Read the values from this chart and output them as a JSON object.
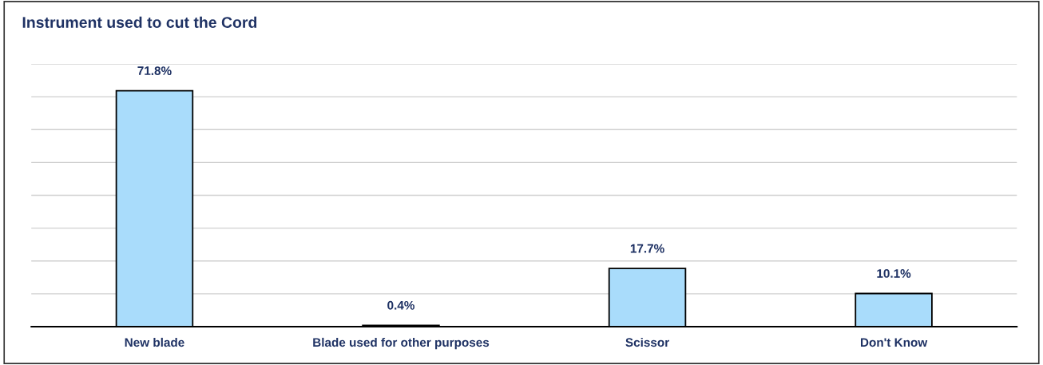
{
  "chart_data": {
    "type": "bar",
    "title": "Instrument used to cut the Cord",
    "categories": [
      "New blade",
      "Blade used for other purposes",
      "Scissor",
      "Don't Know"
    ],
    "values": [
      71.8,
      0.4,
      17.7,
      10.1
    ],
    "value_labels": [
      "71.8%",
      "0.4%",
      "17.7%",
      "10.1%"
    ],
    "color": "#a9dcfb",
    "ylim": [
      0,
      80
    ],
    "yticks": [
      {
        "value": 0,
        "label": null
      },
      {
        "value": 10,
        "label": null
      },
      {
        "value": 20,
        "label": null
      },
      {
        "value": 30,
        "label": null
      },
      {
        "value": 40,
        "label": null
      },
      {
        "value": 50,
        "label": null
      },
      {
        "value": 60,
        "label": null
      },
      {
        "value": 70,
        "label": null
      },
      {
        "value": 80,
        "label": null
      }
    ],
    "grid": "y",
    "tick_labels": "x"
  }
}
